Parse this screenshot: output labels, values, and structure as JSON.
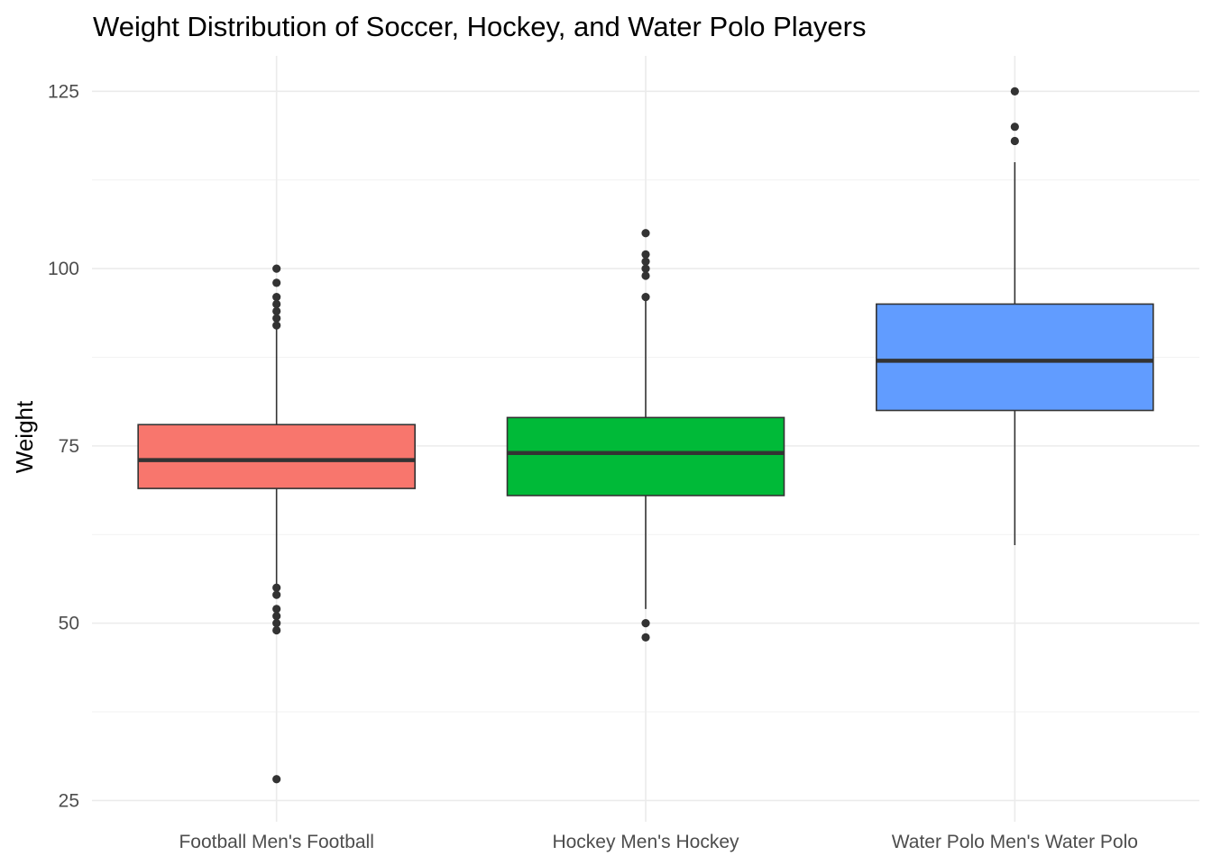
{
  "chart_data": {
    "type": "boxplot",
    "title": "Weight Distribution of Soccer, Hockey, and  Water Polo Players",
    "xlabel": "",
    "ylabel": "Weight",
    "ylim": [
      22,
      130
    ],
    "yticks": [
      25,
      50,
      75,
      100,
      125
    ],
    "grid": true,
    "legend": "none",
    "categories": [
      "Football Men's Football",
      "Hockey Men's Hockey",
      "Water Polo Men's Water Polo"
    ],
    "boxes": [
      {
        "category": "Football Men's Football",
        "color": "#F8766D",
        "lower_whisker": 55.5,
        "q1": 69,
        "median": 73,
        "q3": 78,
        "upper_whisker": 91.5,
        "outliers": [
          100,
          98,
          96,
          95,
          94,
          93,
          92,
          55,
          54,
          52,
          51,
          50,
          49,
          28
        ]
      },
      {
        "category": "Hockey Men's Hockey",
        "color": "#00BA38",
        "lower_whisker": 52,
        "q1": 68,
        "median": 74,
        "q3": 79,
        "upper_whisker": 95.5,
        "outliers": [
          105,
          102,
          101,
          100,
          99,
          96,
          50,
          48
        ]
      },
      {
        "category": "Water Polo Men's Water Polo",
        "color": "#619CFF",
        "lower_whisker": 61,
        "q1": 80,
        "median": 87,
        "q3": 95,
        "upper_whisker": 115,
        "outliers": [
          125,
          120,
          118
        ]
      }
    ]
  }
}
